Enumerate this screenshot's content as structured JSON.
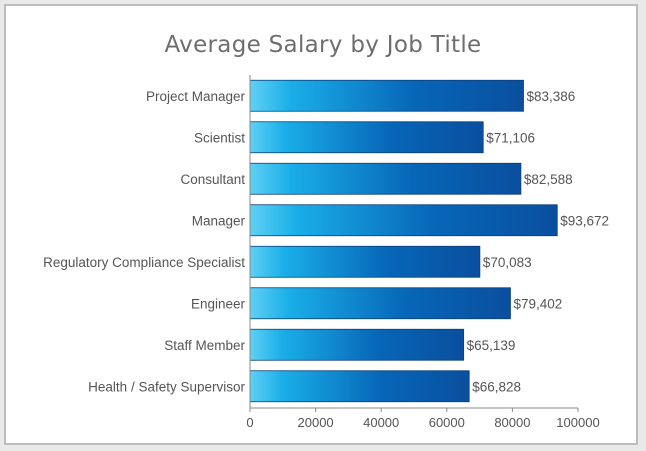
{
  "chart_data": {
    "type": "bar",
    "orientation": "horizontal",
    "title": "Average Salary by Job Title",
    "categories": [
      "Project Manager",
      "Scientist",
      "Consultant",
      "Manager",
      "Regulatory Compliance Specialist",
      "Engineer",
      "Staff Member",
      "Health / Safety Supervisor"
    ],
    "values": [
      83386,
      71106,
      82588,
      93672,
      70083,
      79402,
      65139,
      66828
    ],
    "value_labels": [
      "$83,386",
      "$71,106",
      "$82,588",
      "$93,672",
      "$70,083",
      "$79,402",
      "$65,139",
      "$66,828"
    ],
    "xlim": [
      0,
      100000
    ],
    "xticks": [
      0,
      20000,
      40000,
      60000,
      80000,
      100000
    ],
    "xtick_labels": [
      "0",
      "20000",
      "40000",
      "60000",
      "80000",
      "100000"
    ],
    "grid": false,
    "legend": "none",
    "colors": {
      "bar_light": "#1aaee8",
      "bar_dark": "#0a4f9e",
      "bar_edge": "#0b3f7a"
    }
  }
}
